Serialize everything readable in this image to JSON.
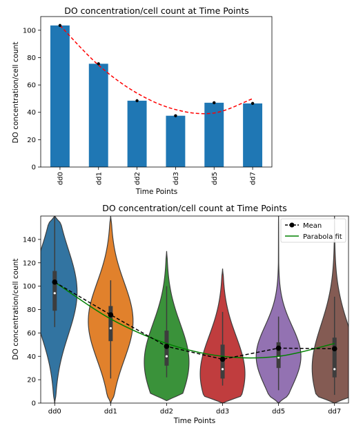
{
  "colors": {
    "bar": "#1f77b4",
    "fit_red": "#ff0000",
    "mean_line": "#000000",
    "parabola_green": "#008000",
    "violins": [
      "#3274a1",
      "#e1812c",
      "#3a923a",
      "#c03d3e",
      "#9372b2",
      "#845b53"
    ]
  },
  "chart_data": [
    {
      "type": "bar",
      "title": "DO concentration/cell count at Time Points",
      "xlabel": "Time Points",
      "ylabel": "DO concentration/cell count",
      "categories": [
        "dd0",
        "dd1",
        "dd2",
        "dd3",
        "dd5",
        "dd7"
      ],
      "values": [
        103.5,
        75.5,
        48.5,
        37.5,
        47,
        46.5
      ],
      "points": [
        103.5,
        75.5,
        48.5,
        37.5,
        47,
        46.5
      ],
      "fit": {
        "style": "dashed",
        "values": [
          103.5,
          74.5,
          54,
          42,
          39.5,
          50
        ]
      },
      "ylim": [
        0,
        110
      ],
      "yticks": [
        0,
        20,
        40,
        60,
        80,
        100
      ],
      "xtick_rotation": "vertical",
      "grid": false
    },
    {
      "type": "violin",
      "title": "DO concentration/cell count at Time Points",
      "xlabel": "Time Points",
      "ylabel": "DO concentration/cell count",
      "categories": [
        "dd0",
        "dd1",
        "dd2",
        "dd3",
        "dd5",
        "dd7"
      ],
      "ylim": [
        0,
        160
      ],
      "yticks": [
        0,
        20,
        40,
        60,
        80,
        100,
        120,
        140
      ],
      "legend_position": "top-right",
      "series": [
        {
          "name": "Mean",
          "style": "dashed-marker",
          "values": [
            103.5,
            75.5,
            48.5,
            37.5,
            47,
            46.5
          ]
        },
        {
          "name": "Parabola fit",
          "style": "solid",
          "values": [
            103.5,
            72,
            51,
            40,
            40,
            51
          ]
        }
      ],
      "violins": [
        {
          "category": "dd0",
          "min": 0,
          "max": 160,
          "q1": 79,
          "median": 94,
          "q3": 113,
          "whisker_low": 65,
          "whisker_high": 160,
          "density_peak": 95
        },
        {
          "category": "dd1",
          "min": 0,
          "max": 160,
          "q1": 53,
          "median": 64,
          "q3": 83,
          "whisker_low": 21,
          "whisker_high": 105,
          "density_peak": 70
        },
        {
          "category": "dd2",
          "min": 2,
          "max": 130,
          "q1": 32,
          "median": 40,
          "q3": 62,
          "whisker_low": 22,
          "whisker_high": 100,
          "density_peak": 35
        },
        {
          "category": "dd3",
          "min": 0,
          "max": 115,
          "q1": 21,
          "median": 29,
          "q3": 50,
          "whisker_low": 15,
          "whisker_high": 78,
          "density_peak": 25
        },
        {
          "category": "dd5",
          "min": 0,
          "max": 160,
          "q1": 30,
          "median": 39,
          "q3": 52,
          "whisker_low": 11,
          "whisker_high": 74,
          "density_peak": 40
        },
        {
          "category": "dd7",
          "min": 0,
          "max": 160,
          "q1": 22,
          "median": 29,
          "q3": 56,
          "whisker_low": 7,
          "whisker_high": 91,
          "density_peak": 30
        }
      ]
    }
  ]
}
